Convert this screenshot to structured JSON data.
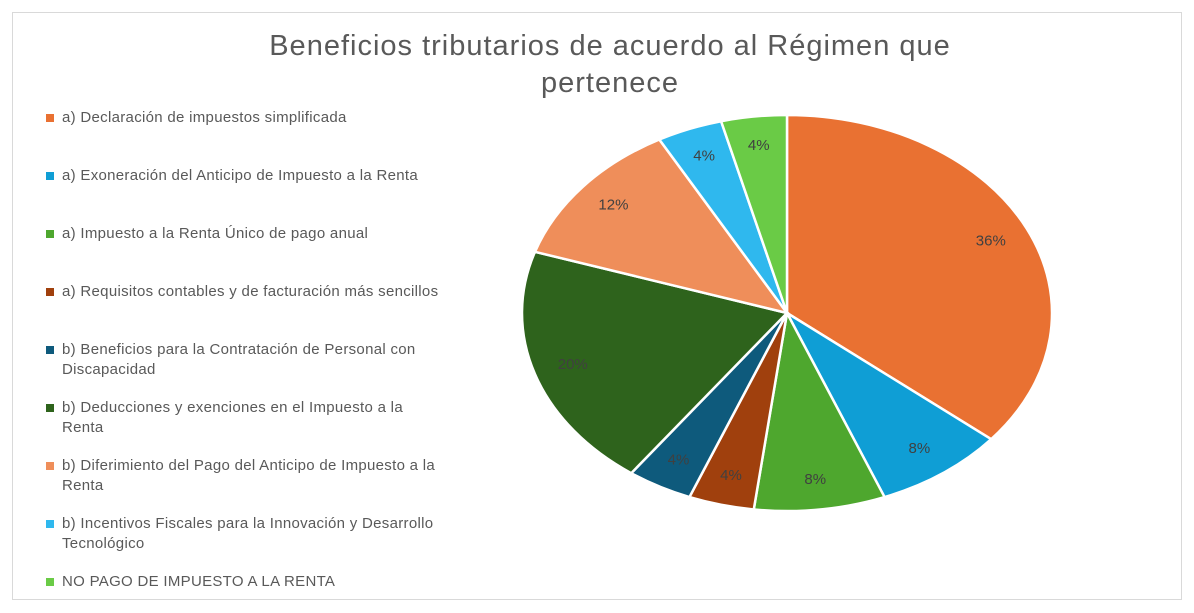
{
  "chart_data": {
    "type": "pie",
    "title": "Beneficios tributarios de acuerdo al Régimen que pertenece",
    "categories": [
      "a) Declaración de impuestos simplificada",
      "a) Exoneración del Anticipo de Impuesto a la Renta",
      "a) Impuesto a la Renta Único de pago anual",
      "a) Requisitos contables y de facturación más sencillos",
      "b) Beneficios para la Contratación de Personal con Discapacidad",
      "b) Deducciones y exenciones en el Impuesto a la Renta",
      "b) Diferimiento del Pago del Anticipo de Impuesto a la Renta",
      "b) Incentivos Fiscales para la Innovación y Desarrollo Tecnológico",
      "NO PAGO DE IMPUESTO A LA RENTA"
    ],
    "values": [
      36,
      8,
      8,
      4,
      4,
      20,
      12,
      4,
      4
    ],
    "value_labels": [
      "36%",
      "8%",
      "8%",
      "4%",
      "4%",
      "20%",
      "12%",
      "4%",
      "4%"
    ],
    "colors": [
      "#e97132",
      "#0f9ed5",
      "#4ea72e",
      "#a0400d",
      "#0e5a7c",
      "#2e631c",
      "#ef8e5a",
      "#2fb8ee",
      "#6acb46"
    ],
    "legend": "left"
  }
}
